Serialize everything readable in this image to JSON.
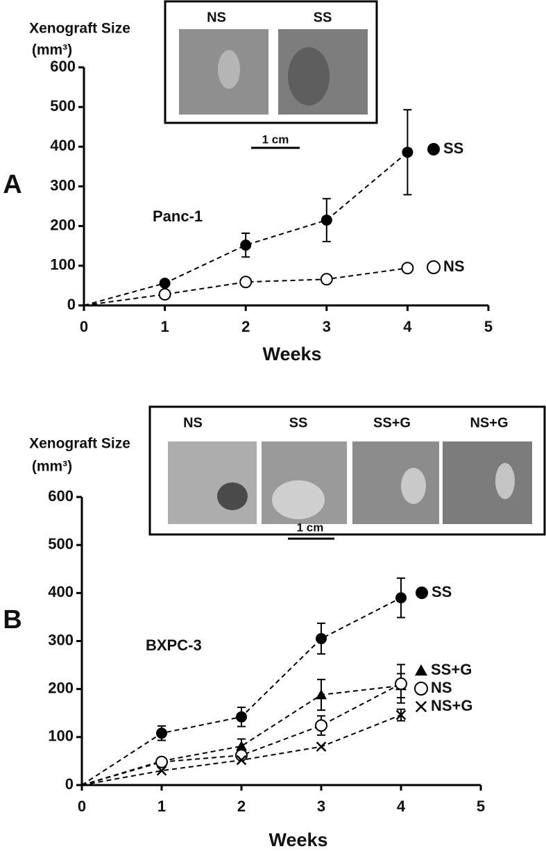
{
  "chart_data": [
    {
      "type": "line",
      "panel": "A",
      "annotation": "Panc-1",
      "ylabel": "Xenograft Size",
      "yunit": "(mm³)",
      "xlabel": "Weeks",
      "inset": {
        "labels": [
          "NS",
          "SS"
        ],
        "scale": "1 cm"
      },
      "x": [
        0,
        1,
        2,
        3,
        4
      ],
      "series": [
        {
          "name": "SS",
          "color": "#000000",
          "marker": "filled-circle",
          "values": [
            0,
            56,
            152,
            215,
            386
          ],
          "errors": [
            null,
            null,
            30,
            54,
            107
          ]
        },
        {
          "name": "NS",
          "color": "#000000",
          "marker": "open-circle",
          "values": [
            0,
            28,
            59,
            66,
            94
          ],
          "errors": [
            null,
            null,
            null,
            null,
            10
          ]
        }
      ],
      "xlim": [
        0,
        5
      ],
      "xticks": [
        0,
        1,
        2,
        3,
        4,
        5
      ],
      "ylim": [
        0,
        600
      ],
      "yticks": [
        0,
        100,
        200,
        300,
        400,
        500,
        600
      ]
    },
    {
      "type": "line",
      "panel": "B",
      "annotation": "BXPC-3",
      "ylabel": "Xenograft Size",
      "yunit": "(mm³)",
      "xlabel": "Weeks",
      "inset": {
        "labels": [
          "NS",
          "SS",
          "SS+G",
          "NS+G"
        ],
        "scale": "1 cm"
      },
      "x": [
        0,
        1,
        2,
        3,
        4
      ],
      "series": [
        {
          "name": "SS",
          "color": "#000000",
          "marker": "filled-circle",
          "values": [
            0,
            108,
            142,
            305,
            390
          ],
          "errors": [
            null,
            15,
            20,
            32,
            41
          ]
        },
        {
          "name": "SS+G",
          "color": "#000000",
          "marker": "triangle",
          "values": [
            0,
            50,
            81,
            188,
            207
          ],
          "errors": [
            null,
            null,
            15,
            32,
            25
          ]
        },
        {
          "name": "NS",
          "color": "#000000",
          "marker": "open-circle",
          "values": [
            0,
            48,
            62,
            124,
            211
          ],
          "errors": [
            null,
            null,
            null,
            20,
            40
          ]
        },
        {
          "name": "NS+G",
          "color": "#000000",
          "marker": "cross",
          "values": [
            0,
            30,
            52,
            80,
            146
          ],
          "errors": [
            null,
            null,
            null,
            null,
            12
          ]
        }
      ],
      "xlim": [
        0,
        5
      ],
      "xticks": [
        0,
        1,
        2,
        3,
        4,
        5
      ],
      "ylim": [
        0,
        600
      ],
      "yticks": [
        0,
        100,
        200,
        300,
        400,
        500,
        600
      ]
    }
  ]
}
